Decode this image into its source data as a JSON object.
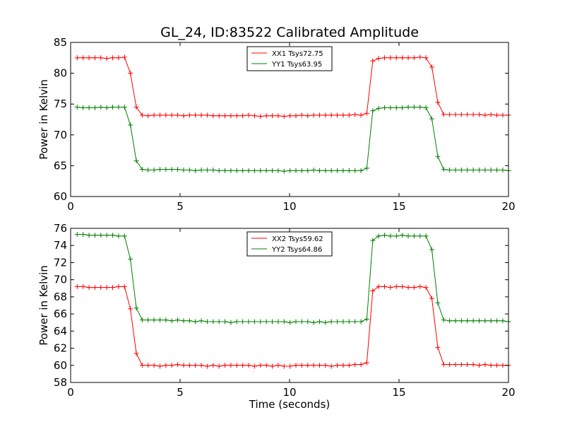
{
  "chart_data": [
    {
      "type": "line",
      "title": "GL_24, ID:83522 Calibrated Amplitude",
      "xlabel": "",
      "ylabel": "Power in Kelvin",
      "xlim": [
        0,
        20
      ],
      "ylim": [
        60,
        85
      ],
      "xticks": [
        0,
        5,
        10,
        15,
        20
      ],
      "yticks": [
        60,
        65,
        70,
        75,
        80,
        85
      ],
      "grid": false,
      "legend_position": "top-center",
      "x": [
        0.3,
        0.57,
        0.84,
        1.11,
        1.38,
        1.65,
        1.92,
        2.19,
        2.46,
        2.73,
        3.0,
        3.27,
        3.54,
        3.81,
        4.08,
        4.35,
        4.62,
        4.89,
        5.16,
        5.43,
        5.7,
        5.97,
        6.24,
        6.51,
        6.78,
        7.05,
        7.32,
        7.59,
        7.86,
        8.13,
        8.4,
        8.67,
        8.94,
        9.21,
        9.48,
        9.75,
        10.02,
        10.29,
        10.56,
        10.83,
        11.1,
        11.37,
        11.64,
        11.91,
        12.18,
        12.45,
        12.72,
        12.99,
        13.26,
        13.53,
        13.8,
        14.07,
        14.34,
        14.61,
        14.88,
        15.15,
        15.42,
        15.69,
        15.96,
        16.23,
        16.5,
        16.77,
        17.04,
        17.31,
        17.58,
        17.85,
        18.12,
        18.39,
        18.66,
        18.93,
        19.2,
        19.47,
        19.74,
        20.0
      ],
      "series": [
        {
          "name": "XX1 Tsys72.75",
          "color": "#ff0000",
          "values": [
            82.5,
            82.5,
            82.5,
            82.5,
            82.5,
            82.4,
            82.5,
            82.5,
            82.6,
            80.0,
            74.5,
            73.2,
            73.1,
            73.2,
            73.2,
            73.2,
            73.2,
            73.2,
            73.1,
            73.2,
            73.2,
            73.2,
            73.2,
            73.1,
            73.1,
            73.1,
            73.1,
            73.1,
            73.1,
            73.2,
            73.1,
            73.0,
            73.1,
            73.1,
            73.1,
            73.0,
            73.1,
            73.1,
            73.2,
            73.1,
            73.2,
            73.2,
            73.2,
            73.2,
            73.2,
            73.2,
            73.2,
            73.3,
            73.2,
            73.5,
            82.0,
            82.4,
            82.5,
            82.5,
            82.5,
            82.5,
            82.5,
            82.5,
            82.6,
            82.5,
            81.0,
            75.3,
            73.3,
            73.3,
            73.3,
            73.3,
            73.3,
            73.3,
            73.3,
            73.2,
            73.3,
            73.2,
            73.2,
            73.2
          ]
        },
        {
          "name": "YY1 Tsys63.95",
          "color": "#008000",
          "values": [
            74.5,
            74.4,
            74.4,
            74.4,
            74.5,
            74.4,
            74.5,
            74.5,
            74.5,
            71.6,
            65.8,
            64.4,
            64.3,
            64.3,
            64.4,
            64.4,
            64.4,
            64.4,
            64.3,
            64.3,
            64.2,
            64.3,
            64.3,
            64.3,
            64.2,
            64.2,
            64.2,
            64.2,
            64.2,
            64.2,
            64.2,
            64.2,
            64.2,
            64.2,
            64.2,
            64.1,
            64.2,
            64.2,
            64.2,
            64.2,
            64.3,
            64.2,
            64.2,
            64.2,
            64.2,
            64.2,
            64.2,
            64.2,
            64.2,
            64.6,
            73.9,
            74.3,
            74.4,
            74.4,
            74.4,
            74.4,
            74.5,
            74.5,
            74.5,
            74.4,
            72.6,
            66.5,
            64.4,
            64.3,
            64.3,
            64.3,
            64.3,
            64.3,
            64.3,
            64.3,
            64.3,
            64.3,
            64.3,
            64.2
          ]
        }
      ]
    },
    {
      "type": "line",
      "title": "",
      "xlabel": "Time (seconds)",
      "ylabel": "Power in Kelvin",
      "xlim": [
        0,
        20
      ],
      "ylim": [
        58,
        76
      ],
      "xticks": [
        0,
        5,
        10,
        15,
        20
      ],
      "yticks": [
        58,
        60,
        62,
        64,
        66,
        68,
        70,
        72,
        74,
        76
      ],
      "grid": false,
      "legend_position": "top-center",
      "x": [
        0.3,
        0.57,
        0.84,
        1.11,
        1.38,
        1.65,
        1.92,
        2.19,
        2.46,
        2.73,
        3.0,
        3.27,
        3.54,
        3.81,
        4.08,
        4.35,
        4.62,
        4.89,
        5.16,
        5.43,
        5.7,
        5.97,
        6.24,
        6.51,
        6.78,
        7.05,
        7.32,
        7.59,
        7.86,
        8.13,
        8.4,
        8.67,
        8.94,
        9.21,
        9.48,
        9.75,
        10.02,
        10.29,
        10.56,
        10.83,
        11.1,
        11.37,
        11.64,
        11.91,
        12.18,
        12.45,
        12.72,
        12.99,
        13.26,
        13.53,
        13.8,
        14.07,
        14.34,
        14.61,
        14.88,
        15.15,
        15.42,
        15.69,
        15.96,
        16.23,
        16.5,
        16.77,
        17.04,
        17.31,
        17.58,
        17.85,
        18.12,
        18.39,
        18.66,
        18.93,
        19.2,
        19.47,
        19.74,
        20.0
      ],
      "series": [
        {
          "name": "XX2 Tsys59.62",
          "color": "#ff0000",
          "values": [
            69.2,
            69.2,
            69.1,
            69.1,
            69.1,
            69.1,
            69.1,
            69.2,
            69.2,
            66.6,
            61.4,
            60.0,
            60.0,
            60.0,
            59.9,
            60.0,
            60.0,
            60.1,
            60.0,
            60.0,
            60.0,
            60.0,
            59.9,
            60.0,
            59.9,
            60.0,
            60.0,
            60.0,
            60.0,
            60.0,
            59.9,
            60.0,
            60.0,
            59.9,
            60.0,
            59.9,
            59.9,
            60.0,
            60.0,
            60.0,
            60.0,
            60.0,
            60.0,
            59.9,
            60.0,
            60.0,
            60.0,
            60.1,
            60.1,
            60.3,
            68.7,
            69.2,
            69.2,
            69.1,
            69.2,
            69.2,
            69.1,
            69.1,
            69.2,
            69.1,
            67.8,
            62.1,
            60.1,
            60.1,
            60.1,
            60.1,
            60.1,
            60.1,
            60.0,
            60.1,
            60.0,
            60.0,
            60.0,
            60.0
          ]
        },
        {
          "name": "YY2 Tsys64.86",
          "color": "#008000",
          "values": [
            75.3,
            75.3,
            75.2,
            75.2,
            75.2,
            75.2,
            75.2,
            75.1,
            75.1,
            72.4,
            66.7,
            65.3,
            65.3,
            65.3,
            65.3,
            65.3,
            65.2,
            65.3,
            65.2,
            65.2,
            65.1,
            65.2,
            65.1,
            65.1,
            65.1,
            65.1,
            65.0,
            65.1,
            65.1,
            65.1,
            65.1,
            65.1,
            65.1,
            65.1,
            65.1,
            65.1,
            65.0,
            65.1,
            65.1,
            65.1,
            65.0,
            65.1,
            65.0,
            65.1,
            65.1,
            65.1,
            65.1,
            65.1,
            65.1,
            65.4,
            74.6,
            75.1,
            75.2,
            75.1,
            75.1,
            75.2,
            75.1,
            75.1,
            75.1,
            75.1,
            73.5,
            67.3,
            65.3,
            65.2,
            65.2,
            65.2,
            65.2,
            65.2,
            65.2,
            65.2,
            65.2,
            65.2,
            65.2,
            65.1
          ]
        }
      ]
    }
  ]
}
